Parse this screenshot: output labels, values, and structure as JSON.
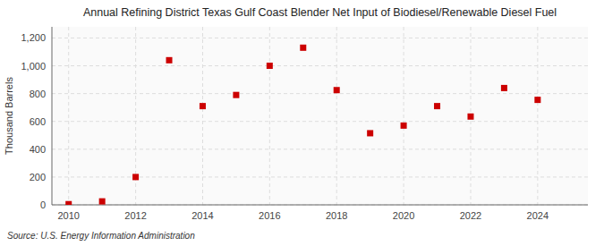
{
  "chart_data": {
    "type": "scatter",
    "title": "Annual Refining District Texas Gulf Coast Blender Net Input of Biodiesel/Renewable Diesel Fuel",
    "ylabel": "Thousand Barrels",
    "annotation": "Source: U.S. Energy Information Administration",
    "x": [
      2010,
      2011,
      2012,
      2013,
      2014,
      2015,
      2016,
      2017,
      2018,
      2019,
      2020,
      2021,
      2022,
      2023,
      2024
    ],
    "values": [
      5,
      25,
      200,
      1040,
      710,
      790,
      1000,
      1130,
      825,
      515,
      570,
      710,
      635,
      840,
      755
    ],
    "color": "#cc0000",
    "marker": "square",
    "xlim": [
      2009.5,
      2025.5
    ],
    "ylim": [
      0,
      1280
    ],
    "xticks": [
      2010,
      2012,
      2014,
      2016,
      2018,
      2020,
      2022,
      2024
    ],
    "yticks": [
      0,
      200,
      400,
      600,
      800,
      {
        "value": 1000,
        "label": "1,000"
      },
      {
        "value": 1200,
        "label": "1,200"
      }
    ],
    "grid": true
  }
}
